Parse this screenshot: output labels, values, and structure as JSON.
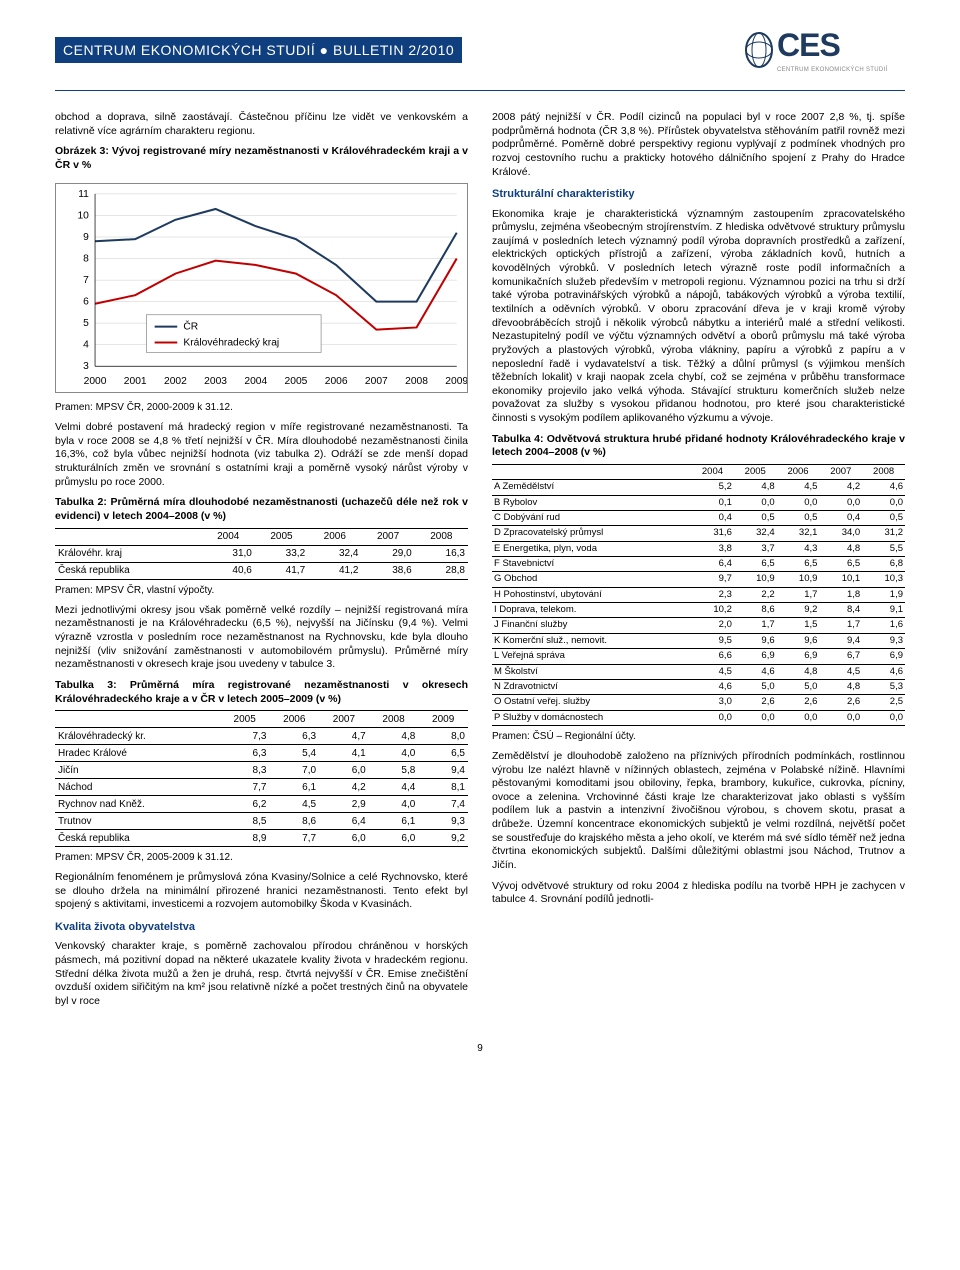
{
  "header": {
    "title": "CENTRUM EKONOMICKÝCH STUDIÍ ● BULLETIN 2/2010",
    "logo_text": "CES",
    "logo_sub": "CENTRUM EKONOMICKÝCH STUDIÍ"
  },
  "page_number": "9",
  "col_left": {
    "p1": "obchod a doprava, silně zaostávají. Částečnou příčinu lze vidět ve venkovském a relativně více agrárním charakteru regionu.",
    "chart_caption": "Obrázek 3: Vývoj registrované míry nezaměstnanosti v Královéhradeckém kraji a v ČR v %",
    "chart": {
      "type": "line",
      "x": [
        2000,
        2001,
        2002,
        2003,
        2004,
        2005,
        2006,
        2007,
        2008,
        2009
      ],
      "ylim": [
        3,
        11
      ],
      "ytick_step": 1,
      "series": [
        {
          "name": "ČR",
          "color": "#1e3a5f",
          "values": [
            8.8,
            8.9,
            9.8,
            10.3,
            9.5,
            8.9,
            7.7,
            6.0,
            6.0,
            9.2
          ]
        },
        {
          "name": "Královéhradecký kraj",
          "color": "#c00000",
          "values": [
            5.9,
            6.3,
            7.3,
            7.9,
            7.7,
            7.3,
            6.3,
            4.7,
            4.8,
            8.0
          ]
        }
      ],
      "background_color": "#ffffff",
      "grid_color": "#cccccc",
      "line_width": 2,
      "fontsize": 10
    },
    "chart_source": "Pramen: MPSV ČR, 2000-2009 k 31.12.",
    "p2": "Velmi dobré postavení má hradecký region v míře registrované nezaměstnanosti. Ta byla v roce 2008 se 4,8 % třetí nejnižší v ČR. Míra dlouhodobé nezaměstnanosti činila 16,3%, což byla vůbec nejnižší hodnota (viz tabulka 2). Odráží se zde menší dopad strukturálních změn ve srovnání s ostatními kraji a poměrně vysoký nárůst výroby v průmyslu po roce 2000.",
    "t2_caption": "Tabulka 2: Průměrná míra dlouhodobé nezaměstnanosti (uchazečů déle než rok v evidenci) v letech 2004–2008 (v %)",
    "t2": {
      "columns": [
        "",
        "2004",
        "2005",
        "2006",
        "2007",
        "2008"
      ],
      "rows": [
        [
          "Královéhr. kraj",
          "31,0",
          "33,2",
          "32,4",
          "29,0",
          "16,3"
        ],
        [
          "Česká republika",
          "40,6",
          "41,7",
          "41,2",
          "38,6",
          "28,8"
        ]
      ]
    },
    "t2_source": "Pramen: MPSV ČR, vlastní výpočty.",
    "p3": "Mezi jednotlivými okresy jsou však poměrně velké rozdíly – nejnižší registrovaná míra nezaměstnanosti je na Královéhradecku (6,5 %), nejvyšší na Jičínsku (9,4 %). Velmi výrazně vzrostla v posledním roce nezaměstnanost na Rychnovsku, kde byla dlouho nejnižší (vliv snižování zaměstnanosti v automobilovém průmyslu). Průměrné míry nezaměstnanosti v okresech kraje jsou uvedeny v tabulce 3.",
    "t3_caption": "Tabulka 3: Průměrná míra registrované nezaměstnanosti v okresech Královéhradeckého kraje a v ČR v letech 2005–2009 (v %)",
    "t3": {
      "columns": [
        "",
        "2005",
        "2006",
        "2007",
        "2008",
        "2009"
      ],
      "rows": [
        [
          "Královéhradecký kr.",
          "7,3",
          "6,3",
          "4,7",
          "4,8",
          "8,0"
        ],
        [
          "Hradec Králové",
          "6,3",
          "5,4",
          "4,1",
          "4,0",
          "6,5"
        ],
        [
          "Jičín",
          "8,3",
          "7,0",
          "6,0",
          "5,8",
          "9,4"
        ],
        [
          "Náchod",
          "7,7",
          "6,1",
          "4,2",
          "4,4",
          "8,1"
        ],
        [
          "Rychnov nad Kněž.",
          "6,2",
          "4,5",
          "2,9",
          "4,0",
          "7,4"
        ],
        [
          "Trutnov",
          "8,5",
          "8,6",
          "6,4",
          "6,1",
          "9,3"
        ],
        [
          "Česká republika",
          "8,9",
          "7,7",
          "6,0",
          "6,0",
          "9,2"
        ]
      ]
    },
    "t3_source": "Pramen: MPSV ČR, 2005-2009 k 31.12.",
    "p4": "Regionálním fenoménem je průmyslová zóna Kvasiny/Solnice a celé Rychnovsko, které se dlouho držela na minimální přirozené hranici nezaměstnanosti. Tento efekt byl spojený s aktivitami, investicemi a rozvojem automobilky Škoda v Kvasinách.",
    "subhead": "Kvalita života obyvatelstva",
    "p5": "Venkovský charakter kraje, s poměrně zachovalou přírodou chráněnou v horských pásmech, má pozitivní dopad na některé ukazatele kvality života v hradeckém regionu. Střední délka života mužů a žen je druhá, resp. čtvrtá nejvyšší v ČR. Emise znečištění ovzduší oxidem siřičitým na km² jsou relativně nízké a počet trestných činů na obyvatele byl v roce"
  },
  "col_right": {
    "p1": "2008 pátý nejnižší v ČR. Podíl cizinců na populaci byl v roce 2007 2,8 %, tj. spíše podprůměrná hodnota (ČR 3,8 %). Přírůstek obyvatelstva stěhováním patřil rovněž mezi podprůměrné. Poměrně dobré perspektivy regionu vyplývají z podmínek vhodných pro rozvoj cestovního ruchu a prakticky hotového dálničního spojení z Prahy do Hradce Králové.",
    "subhead1": "Strukturální charakteristiky",
    "p2": "Ekonomika kraje je charakteristická významným zastoupením zpracovatelského průmyslu, zejména všeobecným strojírenstvím. Z hlediska odvětvové struktury průmyslu zaujímá v posledních letech významný podíl výroba dopravních prostředků a zařízení, elektrických optických přístrojů a zařízení, výroba základních kovů, hutních a kovodělných výrobků. V posledních letech výrazně roste podíl informačních a komunikačních služeb především v metropoli regionu. Významnou pozici na trhu si drží také výroba potravinářských výrobků a nápojů, tabákových výrobků a výroba textilií, textilních a oděvních výrobků. V oboru zpracování dřeva je v kraji kromě výroby dřevoobráběcích strojů i několik výrobců nábytku a interiérů malé a střední velikosti. Nezastupitelný podíl ve výčtu významných odvětví a oborů průmyslu má také výroba pryžových a plastových výrobků, výroba vlákniny, papíru a výrobků z papíru a v neposlední řadě i vydavatelství a tisk. Těžký a důlní průmysl (s výjimkou menších těžebních lokalit) v kraji naopak zcela chybí, což se zejména v průběhu transformace ekonomiky projevilo jako velká výhoda. Stávající strukturu komerčních služeb nelze považovat za služby s vysokou přidanou hodnotou, pro které jsou charakteristické činnosti s vysokým podílem aplikovaného výzkumu a vývoje.",
    "t4_caption": "Tabulka 4: Odvětvová struktura hrubé přidané hodnoty Královéhradeckého kraje v letech 2004–2008 (v %)",
    "t4": {
      "columns": [
        "",
        "2004",
        "2005",
        "2006",
        "2007",
        "2008"
      ],
      "rows": [
        [
          "A Zemědělství",
          "5,2",
          "4,8",
          "4,5",
          "4,2",
          "4,6"
        ],
        [
          "B Rybolov",
          "0,1",
          "0,0",
          "0,0",
          "0,0",
          "0,0"
        ],
        [
          "C Dobývání rud",
          "0,4",
          "0,5",
          "0,5",
          "0,4",
          "0,5"
        ],
        [
          "D Zpracovatelský průmysl",
          "31,6",
          "32,4",
          "32,1",
          "34,0",
          "31,2"
        ],
        [
          "E Energetika, plyn, voda",
          "3,8",
          "3,7",
          "4,3",
          "4,8",
          "5,5"
        ],
        [
          "F Stavebnictví",
          "6,4",
          "6,5",
          "6,5",
          "6,5",
          "6,8"
        ],
        [
          "G Obchod",
          "9,7",
          "10,9",
          "10,9",
          "10,1",
          "10,3"
        ],
        [
          "H Pohostinství, ubytování",
          "2,3",
          "2,2",
          "1,7",
          "1,8",
          "1,9"
        ],
        [
          "I Doprava, telekom.",
          "10,2",
          "8,6",
          "9,2",
          "8,4",
          "9,1"
        ],
        [
          "J Finanční služby",
          "2,0",
          "1,7",
          "1,5",
          "1,7",
          "1,6"
        ],
        [
          "K Komerční služ., nemovit.",
          "9,5",
          "9,6",
          "9,6",
          "9,4",
          "9,3"
        ],
        [
          "L Veřejná správa",
          "6,6",
          "6,9",
          "6,9",
          "6,7",
          "6,9"
        ],
        [
          "M Školství",
          "4,5",
          "4,6",
          "4,8",
          "4,5",
          "4,6"
        ],
        [
          "N Zdravotnictví",
          "4,6",
          "5,0",
          "5,0",
          "4,8",
          "5,3"
        ],
        [
          "O Ostatní veřej. služby",
          "3,0",
          "2,6",
          "2,6",
          "2,6",
          "2,5"
        ],
        [
          "P Služby v domácnostech",
          "0,0",
          "0,0",
          "0,0",
          "0,0",
          "0,0"
        ]
      ]
    },
    "t4_source": "Pramen: ČSÚ – Regionální účty.",
    "p3": "Zemědělství je dlouhodobě založeno na příznivých přírodních podmínkách, rostlinnou výrobu lze nalézt hlavně v nížinných oblastech, zejména v Polabské nížině. Hlavními pěstovanými komoditami jsou obiloviny, řepka, brambory, kukuřice, cukrovka, pícniny, ovoce a zelenina. Vrchovinné části kraje lze charakterizovat jako oblasti s vyšším podílem luk a pastvin a intenzivní živočišnou výrobou, s chovem skotu, prasat a drůbeže. Územní koncentrace ekonomických subjektů je velmi rozdílná, největší počet se soustřeďuje do krajského města a jeho okolí, ve kterém má své sídlo téměř než jedna čtvrtina ekonomických subjektů. Dalšími důležitými oblastmi jsou Náchod, Trutnov a Jičín.",
    "p4": "Vývoj odvětvové struktury od roku 2004 z hlediska podílu na tvorbě HPH je zachycen v tabulce 4. Srovnání podílů jednotli-"
  }
}
